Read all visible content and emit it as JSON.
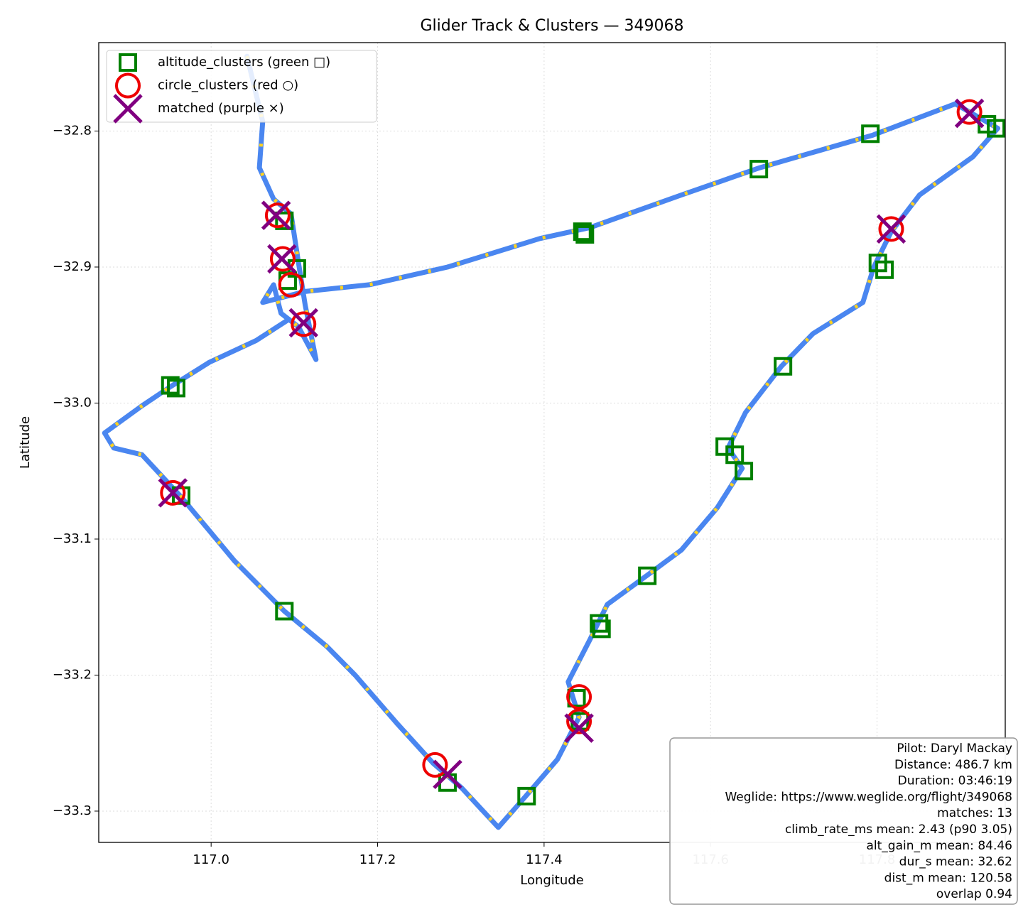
{
  "chart_data": {
    "type": "scatter",
    "title": "Glider Track & Clusters — 349068",
    "xlabel": "Longitude",
    "ylabel": "Latitude",
    "xlim": [
      116.865,
      117.954
    ],
    "ylim": [
      -33.323,
      -32.735
    ],
    "xticks": [
      {
        "value": 117.0,
        "label": "117.0"
      },
      {
        "value": 117.2,
        "label": "117.2"
      },
      {
        "value": 117.4,
        "label": "117.4"
      },
      {
        "value": 117.6,
        "label": "117.6"
      },
      {
        "value": 117.8,
        "label": "117.8"
      }
    ],
    "yticks": [
      {
        "value": -32.8,
        "label": "−32.8"
      },
      {
        "value": -32.9,
        "label": "−32.9"
      },
      {
        "value": -33.0,
        "label": "−33.0"
      },
      {
        "value": -33.1,
        "label": "−33.1"
      },
      {
        "value": -33.2,
        "label": "−33.2"
      },
      {
        "value": -33.3,
        "label": "−33.3"
      }
    ],
    "grid": true,
    "legend": "upper left",
    "series": [
      {
        "marker": "line",
        "color": "#4a86f0",
        "accent": "#ffd21f",
        "x": [
          117.043,
          117.062,
          117.058,
          117.075,
          117.096,
          117.105,
          117.113,
          117.126,
          117.105,
          117.084,
          117.075,
          117.062,
          117.113,
          117.19,
          117.284,
          117.395,
          117.455,
          117.565,
          117.659,
          117.795,
          117.894,
          117.945,
          117.915,
          117.851,
          117.817,
          117.796,
          117.783,
          117.723,
          117.685,
          117.642,
          117.621,
          117.638,
          117.608,
          117.565,
          117.523,
          117.476,
          117.455,
          117.429,
          117.442,
          117.416,
          117.378,
          117.345,
          117.301,
          117.267,
          117.224,
          117.173,
          117.139,
          117.088,
          117.028,
          116.964,
          116.917,
          116.883,
          116.872,
          116.917,
          116.951,
          116.998,
          117.054,
          117.092
        ],
        "y": [
          -32.745,
          -32.793,
          -32.827,
          -32.85,
          -32.861,
          -32.897,
          -32.928,
          -32.968,
          -32.944,
          -32.934,
          -32.913,
          -32.926,
          -32.918,
          -32.913,
          -32.9,
          -32.879,
          -32.871,
          -32.847,
          -32.827,
          -32.803,
          -32.78,
          -32.798,
          -32.819,
          -32.847,
          -32.874,
          -32.9,
          -32.926,
          -32.949,
          -32.973,
          -33.007,
          -33.033,
          -33.048,
          -33.077,
          -33.108,
          -33.127,
          -33.148,
          -33.174,
          -33.205,
          -33.231,
          -33.262,
          -33.289,
          -33.312,
          -33.283,
          -33.265,
          -33.236,
          -33.2,
          -33.179,
          -33.153,
          -33.116,
          -33.069,
          -33.038,
          -33.033,
          -33.022,
          -33.002,
          -32.988,
          -32.97,
          -32.954,
          -32.939
        ]
      },
      {
        "name": "altitude_clusters (green □)",
        "marker": "square",
        "color": "#008000",
        "x": [
          116.951,
          116.958,
          116.964,
          117.088,
          117.103,
          117.092,
          117.088,
          117.446,
          117.449,
          117.658,
          117.792,
          117.801,
          117.809,
          117.932,
          117.943,
          117.687,
          117.617,
          117.629,
          117.64,
          117.524,
          117.466,
          117.469,
          117.439,
          117.443,
          117.284,
          117.379
        ],
        "y": [
          -32.987,
          -32.989,
          -33.068,
          -33.153,
          -32.901,
          -32.91,
          -32.866,
          -32.874,
          -32.876,
          -32.828,
          -32.802,
          -32.897,
          -32.902,
          -32.795,
          -32.798,
          -32.973,
          -33.032,
          -33.038,
          -33.05,
          -33.127,
          -33.162,
          -33.166,
          -33.217,
          -33.234,
          -33.279,
          -33.289
        ]
      },
      {
        "name": "circle_clusters (red ○)",
        "marker": "circle",
        "color": "#ee0000",
        "x": [
          117.08,
          117.086,
          117.096,
          117.111,
          116.954,
          117.911,
          117.817,
          117.442,
          117.442,
          117.269
        ],
        "y": [
          -32.862,
          -32.894,
          -32.913,
          -32.942,
          -33.066,
          -32.786,
          -32.872,
          -33.216,
          -33.234,
          -33.266
        ]
      },
      {
        "name": "matched (purple ×)",
        "marker": "x",
        "color": "#800080",
        "x": [
          117.078,
          117.085,
          117.111,
          116.954,
          117.911,
          117.817,
          117.442,
          117.284
        ],
        "y": [
          -32.862,
          -32.894,
          -32.941,
          -33.066,
          -32.787,
          -32.872,
          -33.239,
          -33.273
        ]
      }
    ],
    "annotation_lines": [
      "Pilot: Daryl Mackay",
      "Distance: 486.7 km",
      "Duration: 03:46:19",
      "Weglide: https://www.weglide.org/flight/349068",
      "matches: 13",
      "climb_rate_ms mean: 2.43 (p90 3.05)",
      "alt_gain_m mean: 84.46",
      "dur_s mean: 32.62",
      "dist_m mean: 120.58",
      "overlap 0.94"
    ]
  }
}
